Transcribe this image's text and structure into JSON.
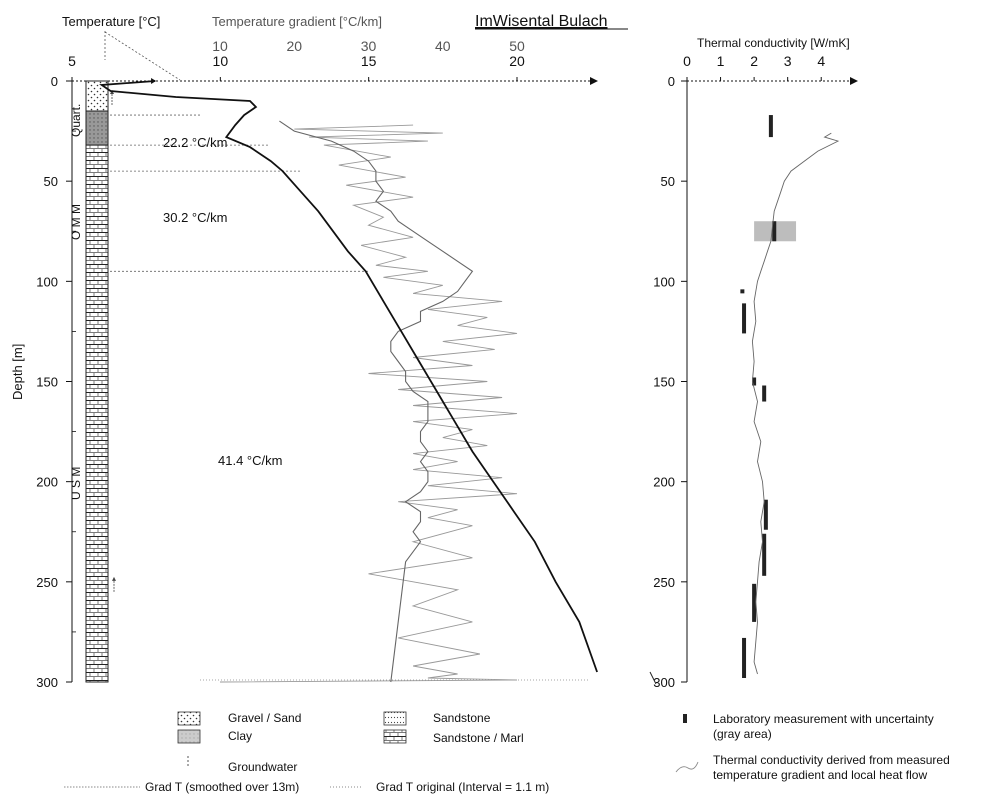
{
  "chart_data": [
    {
      "type": "line",
      "title": "ImWisental Bulach",
      "x_top_label_temperature": "Temperature [°C]",
      "x_top_label_gradient": "Temperature gradient [°C/km]",
      "ylabel": "Depth [m]",
      "ylim": [
        0,
        300
      ],
      "y_ticks": [
        0,
        50,
        100,
        150,
        200,
        250,
        300
      ],
      "temperature_axis": {
        "ticks": [
          5,
          10,
          15,
          20
        ],
        "range": [
          5,
          24
        ]
      },
      "gradient_axis": {
        "ticks": [
          10,
          20,
          30,
          40,
          50
        ],
        "range": [
          0,
          60
        ]
      },
      "series": [
        {
          "name": "",
          "kind": "temperature_profile",
          "x": [
            7.8,
            6.0,
            6.3,
            8.5,
            11.0,
            11.2,
            10.8,
            10.5,
            10.2,
            11.0,
            11.7,
            12.1,
            12.7,
            13.3,
            13.8,
            14.3,
            14.9,
            15.5,
            16.1,
            16.7,
            17.3,
            17.9,
            18.5,
            19.2,
            19.9,
            20.6,
            21.3,
            22.1,
            22.7
          ],
          "y": [
            0,
            2,
            5,
            8,
            10,
            13,
            17,
            22,
            28,
            33,
            40,
            45,
            55,
            65,
            75,
            85,
            95,
            110,
            125,
            140,
            155,
            170,
            185,
            200,
            215,
            230,
            250,
            270,
            295
          ]
        },
        {
          "name": "Grad T (smoothed over 13m)",
          "kind": "gradient_smoothed",
          "x": [
            18,
            20,
            25,
            28,
            30,
            31,
            31,
            32,
            31,
            33,
            34,
            36,
            38,
            40,
            42,
            44,
            43,
            42,
            40,
            37,
            37,
            34,
            33,
            33,
            34,
            35,
            35,
            36,
            38,
            38,
            38,
            37,
            37,
            38,
            37,
            38,
            38,
            37,
            35,
            37,
            37,
            36,
            37,
            35,
            33
          ],
          "y": [
            20,
            25,
            30,
            35,
            40,
            45,
            50,
            55,
            60,
            65,
            70,
            75,
            80,
            85,
            90,
            95,
            100,
            105,
            110,
            115,
            120,
            125,
            130,
            135,
            140,
            145,
            150,
            155,
            160,
            165,
            170,
            175,
            180,
            185,
            190,
            195,
            200,
            205,
            210,
            215,
            220,
            225,
            230,
            240,
            300
          ]
        },
        {
          "name": "Grad T original (Interval = 1.1 m)",
          "kind": "gradient_original",
          "x": [
            36,
            20,
            40,
            22,
            38,
            24,
            33,
            26,
            35,
            27,
            36,
            28,
            32,
            30,
            36,
            29,
            35,
            31,
            38,
            32,
            40,
            36,
            48,
            38,
            46,
            42,
            50,
            40,
            47,
            36,
            44,
            30,
            46,
            34,
            48,
            36,
            50,
            36,
            44,
            40,
            46,
            36,
            42,
            36,
            48,
            38,
            50,
            34,
            42,
            38,
            44,
            36,
            44,
            30,
            42,
            36,
            44,
            34,
            45,
            36,
            42,
            38,
            50,
            10
          ],
          "y": [
            22,
            24,
            26,
            28,
            30,
            32,
            38,
            42,
            48,
            52,
            58,
            62,
            68,
            72,
            78,
            82,
            88,
            92,
            95,
            98,
            102,
            106,
            110,
            114,
            118,
            122,
            126,
            130,
            134,
            138,
            142,
            146,
            150,
            154,
            158,
            162,
            166,
            170,
            174,
            178,
            182,
            186,
            190,
            194,
            198,
            202,
            206,
            210,
            214,
            218,
            222,
            230,
            238,
            246,
            254,
            262,
            270,
            278,
            286,
            292,
            296,
            298,
            299,
            300
          ]
        }
      ],
      "annotations": [
        {
          "text": "22.2 °C/km",
          "depth": 30
        },
        {
          "text": "30.2 °C/km",
          "depth": 68
        },
        {
          "text": "41.4 °C/km",
          "depth": 190
        }
      ],
      "lithology_column_labels": [
        "Quart.",
        "O M M",
        "U S M"
      ],
      "legend": {
        "lithology": [
          "Gravel / Sand",
          "Clay",
          "Sandstone",
          "Sandstone / Marl"
        ],
        "other": [
          "Groundwater"
        ],
        "lines": [
          "Grad T (smoothed over 13m)",
          "Grad T original (Interval = 1.1 m)"
        ]
      }
    },
    {
      "type": "line",
      "xlabel": "Thermal conductivity [W/mK]",
      "ylim": [
        0,
        300
      ],
      "xlim": [
        0,
        5
      ],
      "x_ticks": [
        0,
        1,
        2,
        3,
        4
      ],
      "y_ticks": [
        0,
        50,
        100,
        150,
        200,
        250,
        300
      ],
      "series": [
        {
          "name": "Thermal conductivity derived from measured temperature gradient and local heat flow",
          "x": [
            4.3,
            4.1,
            4.5,
            3.9,
            3.5,
            3.1,
            2.9,
            2.8,
            2.7,
            2.6,
            2.55,
            2.5,
            2.4,
            2.3,
            2.2,
            2.1,
            2.0,
            2.05,
            1.95,
            2.0,
            1.95,
            2.1,
            2.0,
            2.2,
            2.1,
            2.25,
            2.3,
            2.2,
            2.25,
            2.15,
            2.1,
            2.05,
            2.1,
            2.05,
            2.0,
            2.1
          ],
          "y": [
            26,
            28,
            30,
            35,
            40,
            45,
            50,
            55,
            60,
            65,
            72,
            80,
            85,
            90,
            95,
            100,
            110,
            120,
            130,
            140,
            150,
            160,
            170,
            180,
            190,
            200,
            210,
            220,
            230,
            240,
            250,
            260,
            270,
            280,
            290,
            296
          ]
        }
      ],
      "lab_measurements": [
        {
          "x": 2.5,
          "y0": 17,
          "y1": 28
        },
        {
          "x": 2.6,
          "y0": 70,
          "y1": 80,
          "xerr": [
            2.0,
            3.25
          ]
        },
        {
          "x": 1.65,
          "y0": 104,
          "y1": 106
        },
        {
          "x": 1.7,
          "y0": 111,
          "y1": 126
        },
        {
          "x": 2.0,
          "y0": 148,
          "y1": 152
        },
        {
          "x": 2.3,
          "y0": 152,
          "y1": 160
        },
        {
          "x": 2.35,
          "y0": 209,
          "y1": 224
        },
        {
          "x": 2.3,
          "y0": 226,
          "y1": 247
        },
        {
          "x": 2.0,
          "y0": 251,
          "y1": 270
        },
        {
          "x": 1.7,
          "y0": 278,
          "y1": 298
        }
      ],
      "legend": [
        "Laboratory measurement with uncertainty (gray area)",
        "Thermal conductivity derived from measured temperature gradient and local heat flow"
      ]
    }
  ],
  "colors": {
    "ink": "#111111",
    "gray_line": "#888888",
    "hatch": "#777777",
    "lab_band": "#bdbdbd"
  },
  "texts": {
    "title": "ImWisental Bulach",
    "temp_label": "Temperature [°C]",
    "grad_label": "Temperature gradient [°C/km]",
    "depth_label": "Depth [m]",
    "tc_label": "Thermal conductivity [W/mK]",
    "quart": "Quart.",
    "omm": "O M M",
    "usm": "U S M",
    "ann1": "22.2 °C/km",
    "ann2": "30.2 °C/km",
    "ann3": "41.4 °C/km",
    "leg_gravel": "Gravel / Sand",
    "leg_clay": "Clay",
    "leg_sand": "Sandstone",
    "leg_marl": "Sandstone / Marl",
    "leg_groundwater": "Groundwater",
    "leg_grad_smooth": "Grad T (smoothed over 13m)",
    "leg_grad_orig": "Grad T original (Interval = 1.1 m)",
    "leg_lab1": "Laboratory measurement with uncertainty",
    "leg_lab2": "(gray area)",
    "leg_tc1": "Thermal conductivity derived from measured",
    "leg_tc2": "temperature gradient and local heat flow"
  }
}
